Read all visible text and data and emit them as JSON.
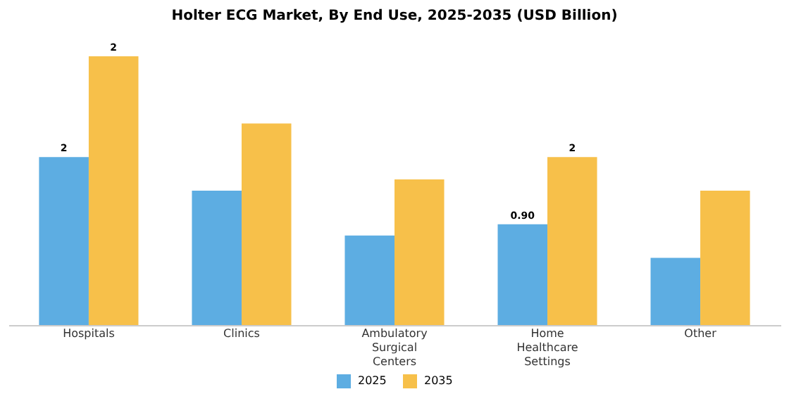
{
  "chart_data": {
    "type": "bar",
    "title": "Holter ECG Market, By End Use, 2025-2035 (USD Billion)",
    "categories": [
      "Hospitals",
      "Clinics",
      "Ambulatory Surgical Centers",
      "Home Healthcare Settings",
      "Other"
    ],
    "series": [
      {
        "name": "2025",
        "color": "#5dade2",
        "values": [
          1.5,
          1.2,
          0.8,
          0.9,
          0.6
        ],
        "value_labels": [
          "2",
          null,
          null,
          "0.90",
          null
        ]
      },
      {
        "name": "2035",
        "color": "#f7c04a",
        "values": [
          2.4,
          1.8,
          1.3,
          1.5,
          1.2
        ],
        "value_labels": [
          "2",
          null,
          null,
          "2",
          null
        ]
      }
    ],
    "legend": "bottom",
    "grid": false
  }
}
